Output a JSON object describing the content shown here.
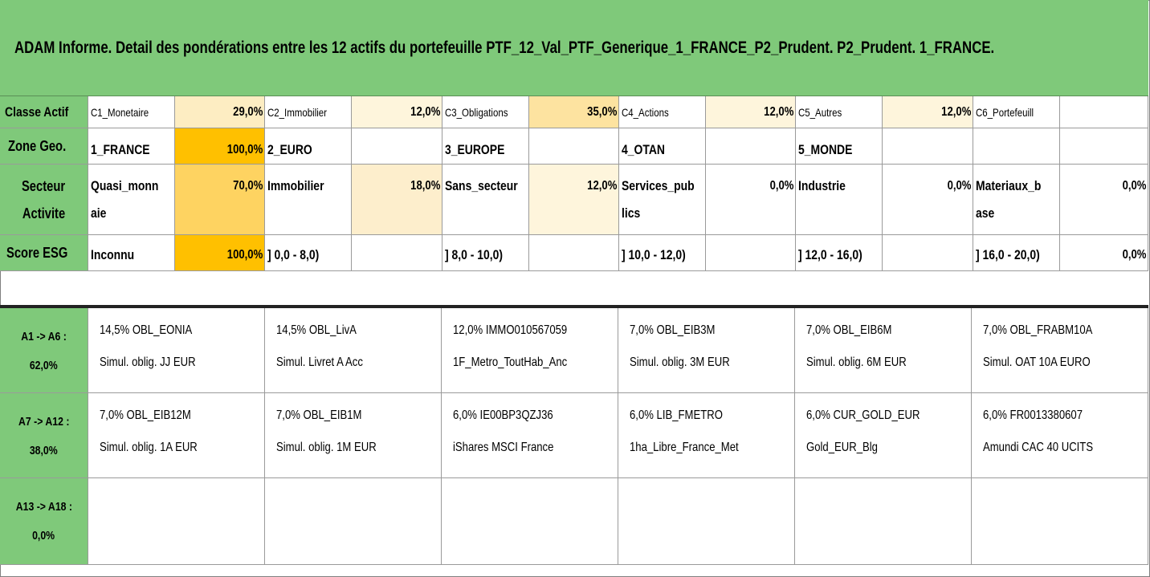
{
  "title": "ADAM Informe. Detail des pondérations entre les 12 actifs du portefeuille PTF_12_Val_PTF_Generique_1_FRANCE_P2_Prudent. P2_Prudent. 1_FRANCE.",
  "rows": {
    "classe": {
      "label": "Classe Actif",
      "cells": [
        {
          "name": "C1_Monetaire",
          "pct": "29,0%"
        },
        {
          "name": "C2_Immobilier",
          "pct": "12,0%"
        },
        {
          "name": "C3_Obligations",
          "pct": "35,0%"
        },
        {
          "name": "C4_Actions",
          "pct": "12,0%"
        },
        {
          "name": "C5_Autres",
          "pct": "12,0%"
        },
        {
          "name": "C6_Portefeuill",
          "pct": ""
        }
      ]
    },
    "zone": {
      "label": "Zone Geo.",
      "cells": [
        {
          "name": "1_FRANCE",
          "pct": "100,0%"
        },
        {
          "name": "2_EURO",
          "pct": ""
        },
        {
          "name": "3_EUROPE",
          "pct": ""
        },
        {
          "name": "4_OTAN",
          "pct": ""
        },
        {
          "name": "5_MONDE",
          "pct": ""
        },
        {
          "name": "",
          "pct": ""
        }
      ]
    },
    "secteur": {
      "label_line1": "Secteur",
      "label_line2": "Activite",
      "cells": [
        {
          "line1": "Quasi_monn",
          "line2": "aie",
          "pct": "70,0%"
        },
        {
          "line1": "Immobilier",
          "line2": "",
          "pct": "18,0%"
        },
        {
          "line1": "Sans_secteur",
          "line2": "",
          "pct": "12,0%"
        },
        {
          "line1": "Services_pub",
          "line2": "lics",
          "pct": "0,0%"
        },
        {
          "line1": "Industrie",
          "line2": "",
          "pct": "0,0%"
        },
        {
          "line1": "Materiaux_b",
          "line2": "ase",
          "pct": "0,0%"
        }
      ]
    },
    "esg": {
      "label": "Score ESG",
      "cells": [
        {
          "name": "Inconnu",
          "pct": "100,0%"
        },
        {
          "name": "] 0,0 - 8,0)",
          "pct": ""
        },
        {
          "name": "] 8,0 - 10,0)",
          "pct": ""
        },
        {
          "name": "] 10,0 - 12,0)",
          "pct": ""
        },
        {
          "name": "] 12,0 - 16,0)",
          "pct": ""
        },
        {
          "name": "] 16,0 - 20,0)",
          "pct": "0,0%"
        }
      ]
    }
  },
  "assets": [
    {
      "label_line1": "A1 -> A6 :",
      "label_line2": "62,0%",
      "items": [
        {
          "line1": "14,5% OBL_EONIA",
          "line2": "Simul. oblig. JJ EUR"
        },
        {
          "line1": "14,5% OBL_LivA",
          "line2": "Simul. Livret A Acc"
        },
        {
          "line1": "12,0% IMMO010567059",
          "line2": "1F_Metro_ToutHab_Anc"
        },
        {
          "line1": "7,0% OBL_EIB3M",
          "line2": "Simul. oblig. 3M EUR"
        },
        {
          "line1": "7,0% OBL_EIB6M",
          "line2": "Simul. oblig. 6M EUR"
        },
        {
          "line1": "7,0% OBL_FRABM10A",
          "line2": "Simul. OAT 10A EURO"
        }
      ]
    },
    {
      "label_line1": "A7 -> A12 :",
      "label_line2": "38,0%",
      "items": [
        {
          "line1": "7,0% OBL_EIB12M",
          "line2": "Simul. oblig. 1A EUR"
        },
        {
          "line1": "7,0% OBL_EIB1M",
          "line2": "Simul. oblig. 1M EUR"
        },
        {
          "line1": "6,0% IE00BP3QZJ36",
          "line2": "iShares MSCI France"
        },
        {
          "line1": "6,0% LIB_FMETRO",
          "line2": "1ha_Libre_France_Met"
        },
        {
          "line1": "6,0% CUR_GOLD_EUR",
          "line2": "Gold_EUR_Blg"
        },
        {
          "line1": "6,0% FR0013380607",
          "line2": "Amundi CAC 40 UCITS"
        }
      ]
    },
    {
      "label_line1": "A13 -> A18 :",
      "label_line2": "0,0%",
      "items": [
        {
          "line1": "",
          "line2": ""
        },
        {
          "line1": "",
          "line2": ""
        },
        {
          "line1": "",
          "line2": ""
        },
        {
          "line1": "",
          "line2": ""
        },
        {
          "line1": "",
          "line2": ""
        },
        {
          "line1": "",
          "line2": ""
        }
      ]
    }
  ]
}
